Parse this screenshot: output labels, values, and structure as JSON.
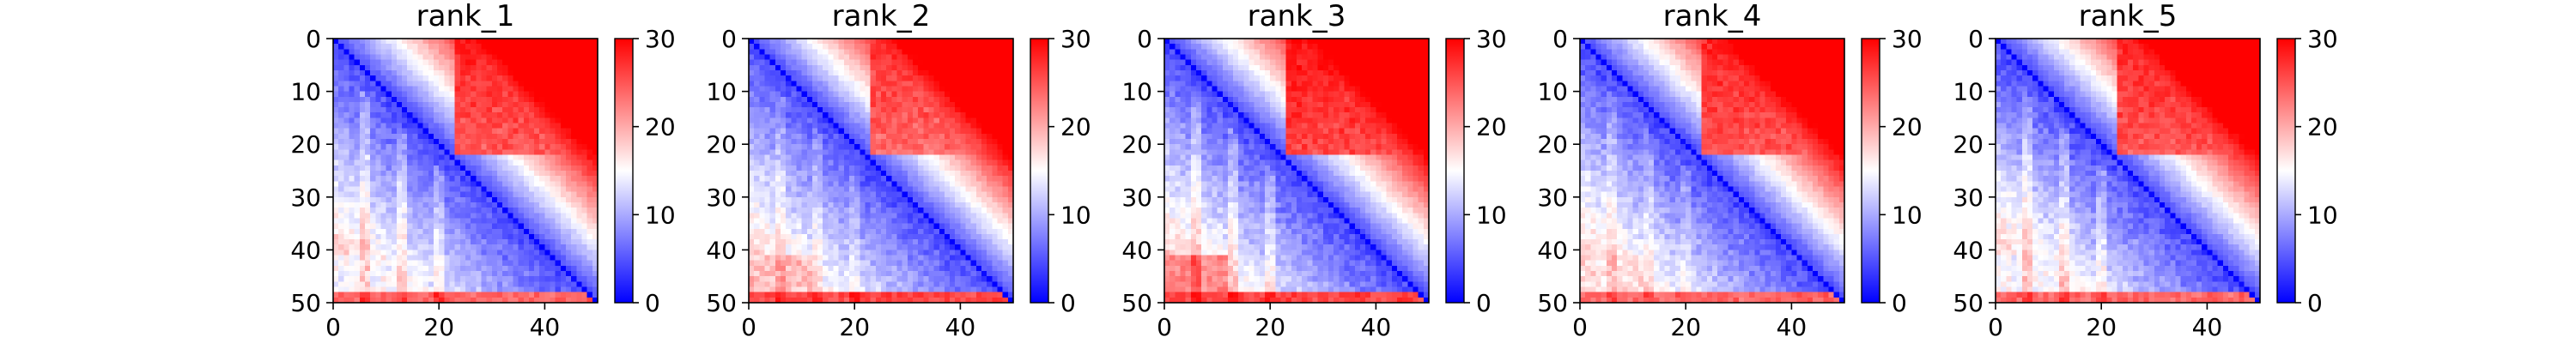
{
  "colormap": {
    "name": "bwr",
    "low": "#0000ff",
    "mid": "#ffffff",
    "high": "#ff0000"
  },
  "chart_data": [
    {
      "type": "heatmap",
      "title": "rank_1",
      "grid": false,
      "x_ticks": [
        0,
        20,
        40
      ],
      "y_ticks": [
        0,
        10,
        20,
        30,
        40,
        50
      ],
      "xlim": [
        0,
        50
      ],
      "ylim": [
        0,
        50
      ],
      "colorbar": {
        "min": 0,
        "max": 30,
        "ticks": [
          0,
          10,
          20,
          30
        ]
      },
      "size": 50,
      "matrix_summary": {
        "diagonal": 0,
        "near_diagonal": 4,
        "upper_right_block": 28,
        "lower_left_far": 15,
        "bottom_row_band": 24
      }
    },
    {
      "type": "heatmap",
      "title": "rank_2",
      "grid": false,
      "x_ticks": [
        0,
        20,
        40
      ],
      "y_ticks": [
        0,
        10,
        20,
        30,
        40,
        50
      ],
      "xlim": [
        0,
        50
      ],
      "ylim": [
        0,
        50
      ],
      "colorbar": {
        "min": 0,
        "max": 30,
        "ticks": [
          0,
          10,
          20,
          30
        ]
      },
      "size": 50,
      "matrix_summary": {
        "diagonal": 0,
        "near_diagonal": 4,
        "upper_right_block": 27,
        "lower_left_far": 19,
        "bottom_row_band": 26
      }
    },
    {
      "type": "heatmap",
      "title": "rank_3",
      "grid": false,
      "x_ticks": [
        0,
        20,
        40
      ],
      "y_ticks": [
        0,
        10,
        20,
        30,
        40,
        50
      ],
      "xlim": [
        0,
        50
      ],
      "ylim": [
        0,
        50
      ],
      "colorbar": {
        "min": 0,
        "max": 30,
        "ticks": [
          0,
          10,
          20,
          30
        ]
      },
      "size": 50,
      "matrix_summary": {
        "diagonal": 0,
        "near_diagonal": 4,
        "upper_right_block": 29,
        "lower_left_far": 22,
        "bottom_row_band": 26
      }
    },
    {
      "type": "heatmap",
      "title": "rank_4",
      "grid": false,
      "x_ticks": [
        0,
        20,
        40
      ],
      "y_ticks": [
        0,
        10,
        20,
        30,
        40,
        50
      ],
      "xlim": [
        0,
        50
      ],
      "ylim": [
        0,
        50
      ],
      "colorbar": {
        "min": 0,
        "max": 30,
        "ticks": [
          0,
          10,
          20,
          30
        ]
      },
      "size": 50,
      "matrix_summary": {
        "diagonal": 0,
        "near_diagonal": 4,
        "upper_right_block": 28,
        "lower_left_far": 17,
        "bottom_row_band": 24
      }
    },
    {
      "type": "heatmap",
      "title": "rank_5",
      "grid": false,
      "x_ticks": [
        0,
        20,
        40
      ],
      "y_ticks": [
        0,
        10,
        20,
        30,
        40,
        50
      ],
      "xlim": [
        0,
        50
      ],
      "ylim": [
        0,
        50
      ],
      "colorbar": {
        "min": 0,
        "max": 30,
        "ticks": [
          0,
          10,
          20,
          30
        ]
      },
      "size": 50,
      "matrix_summary": {
        "diagonal": 0,
        "near_diagonal": 4,
        "upper_right_block": 28,
        "lower_left_far": 15,
        "bottom_row_band": 24
      }
    }
  ]
}
